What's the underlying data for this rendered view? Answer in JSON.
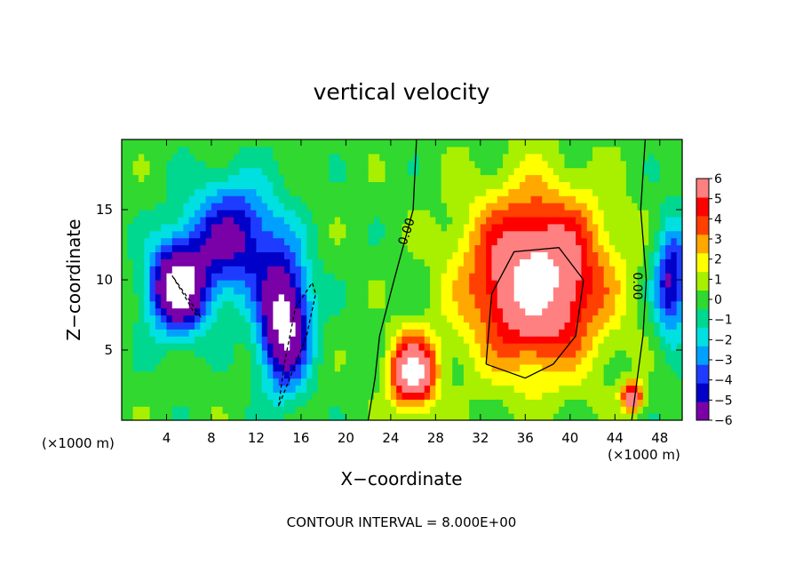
{
  "chart_data": {
    "type": "heatmap",
    "title": "vertical velocity",
    "xlabel": "X−coordinate",
    "ylabel": "Z−coordinate",
    "x_unit_left": "(×1000 m)",
    "x_unit_right": "(×1000 m)",
    "xlim": [
      0,
      50
    ],
    "ylim": [
      0,
      20
    ],
    "x_ticks": [
      4,
      8,
      12,
      16,
      20,
      24,
      28,
      32,
      36,
      40,
      44,
      48
    ],
    "y_ticks": [
      5,
      10,
      15
    ],
    "colorbar": {
      "ticks": [
        6,
        5,
        4,
        3,
        2,
        1,
        0,
        -1,
        -2,
        -3,
        -4,
        -5,
        -6
      ],
      "tick_labels": [
        "6",
        "5",
        "4",
        "3",
        "2",
        "1",
        "0",
        "−1",
        "−2",
        "−3",
        "−4",
        "−5",
        "−6"
      ],
      "range": [
        -6,
        6
      ],
      "colors": [
        "#7a00a8",
        "#0000c8",
        "#1e3cff",
        "#00a0ff",
        "#00e0e0",
        "#00d890",
        "#30d830",
        "#a8f000",
        "#ffff00",
        "#ffa800",
        "#ff4000",
        "#ff0000",
        "#ff8080"
      ]
    },
    "contour_labels": [
      "0.00",
      "0.00"
    ],
    "footer": "CONTOUR INTERVAL = 8.000E+00",
    "features": [
      {
        "kind": "downdraft",
        "x": 5,
        "z": 9.5,
        "sx": 2.6,
        "sz": 3.2,
        "value": -6
      },
      {
        "kind": "downdraft",
        "x": 14.5,
        "z": 7,
        "sx": 2.2,
        "sz": 4.5,
        "value": -6
      },
      {
        "kind": "downdraft",
        "x": 10,
        "z": 13,
        "sx": 4,
        "sz": 4,
        "value": -4
      },
      {
        "kind": "downdraft",
        "x": 49,
        "z": 10,
        "sx": 1.5,
        "sz": 4,
        "value": -4
      },
      {
        "kind": "updraft",
        "x": 37,
        "z": 10,
        "sx": 6,
        "sz": 6,
        "value": 6
      },
      {
        "kind": "updraft",
        "x": 26,
        "z": 3.5,
        "sx": 2,
        "sz": 2.5,
        "value": 6
      },
      {
        "kind": "updraft",
        "x": 45.5,
        "z": 1.7,
        "sx": 0.9,
        "sz": 1,
        "value": 5
      }
    ]
  }
}
